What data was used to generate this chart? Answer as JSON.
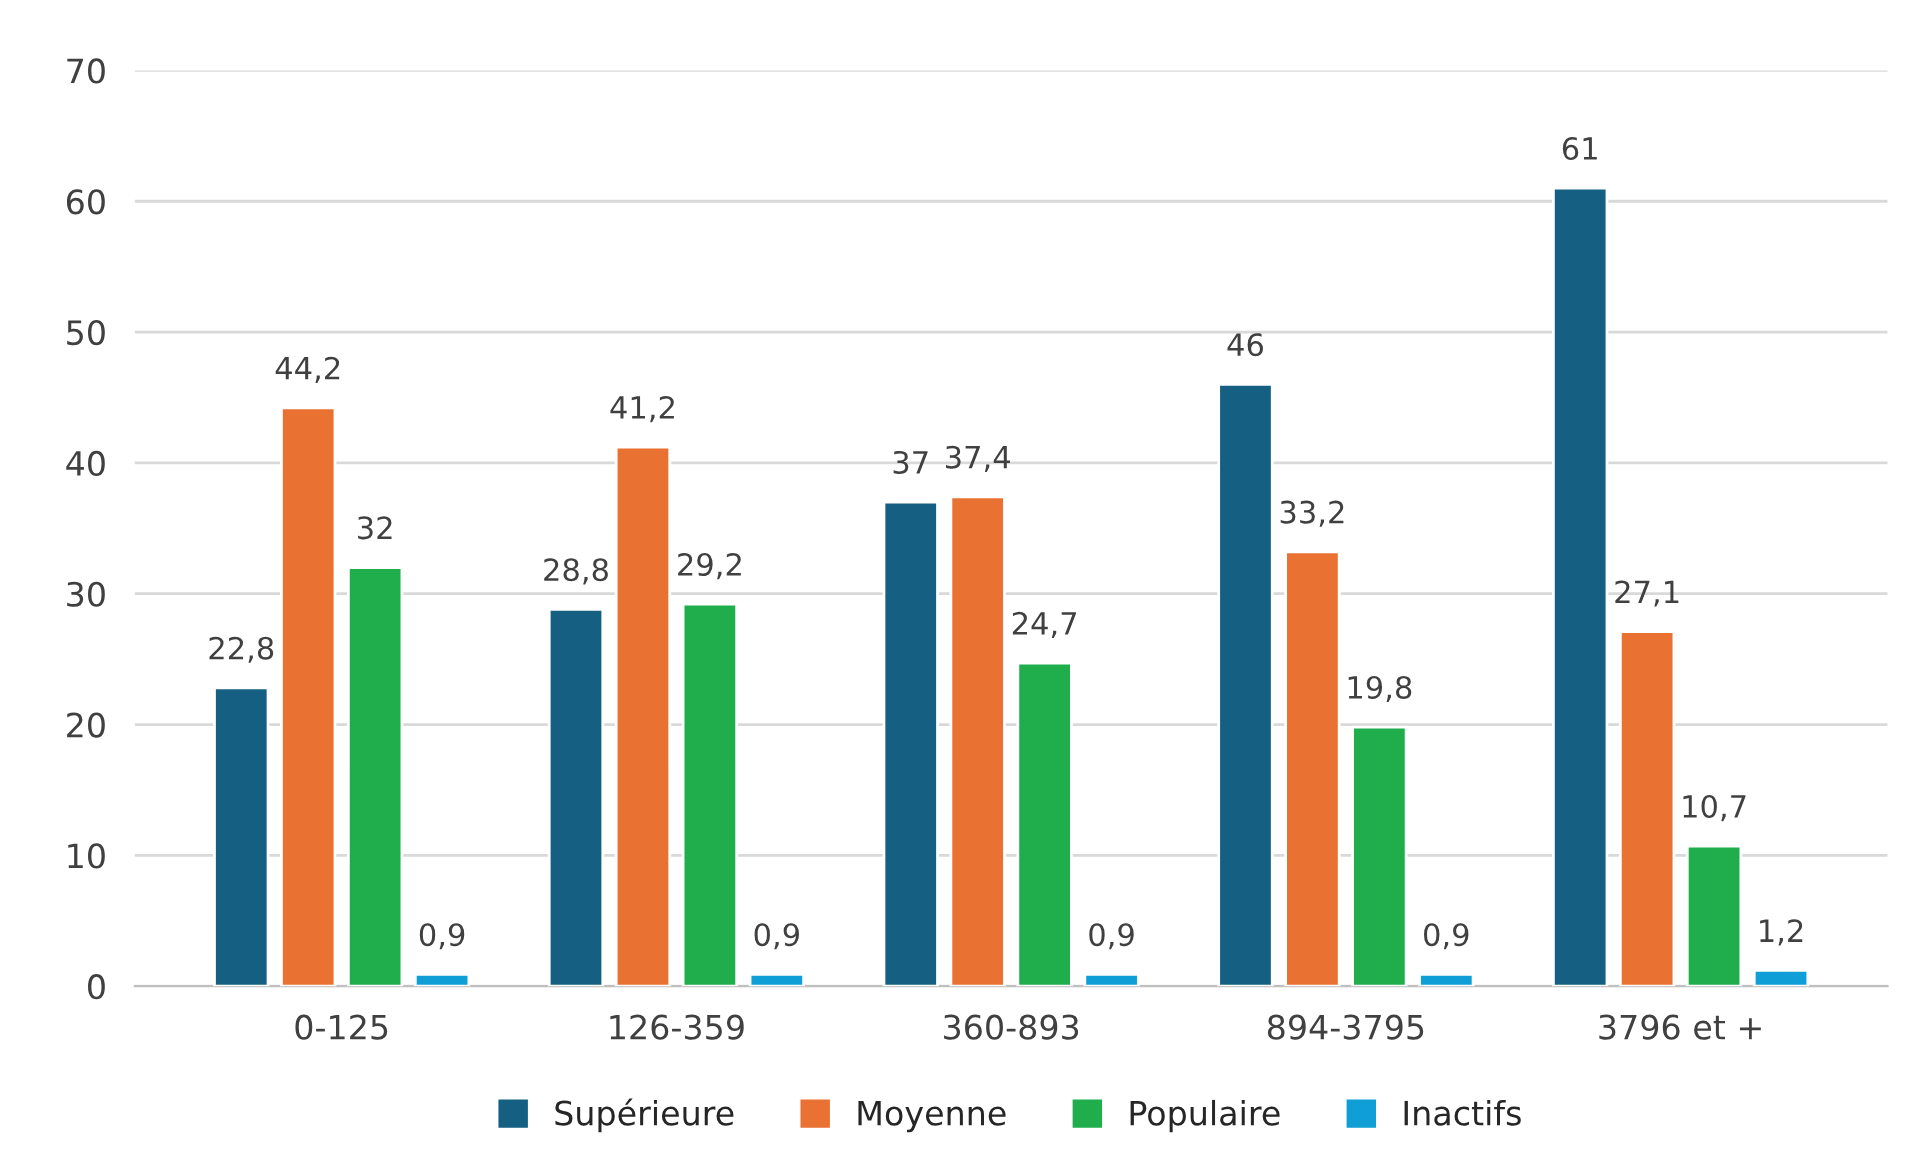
{
  "chart_data": {
    "type": "bar",
    "categories": [
      "0-125",
      "126-359",
      "360-893",
      "894-3795",
      "3796 et +"
    ],
    "series": [
      {
        "name": "Supérieure",
        "color": "#156082",
        "values": [
          22.8,
          28.8,
          37,
          46,
          61
        ],
        "value_labels": [
          "22,8",
          "28,8",
          "37",
          "46",
          "61"
        ]
      },
      {
        "name": "Moyenne",
        "color": "#e97132",
        "values": [
          44.2,
          41.2,
          37.4,
          33.2,
          27.1
        ],
        "value_labels": [
          "44,2",
          "41,2",
          "37,4",
          "33,2",
          "27,1"
        ]
      },
      {
        "name": "Populaire",
        "color": "#1fae4b",
        "values": [
          32,
          29.2,
          24.7,
          19.8,
          10.7
        ],
        "value_labels": [
          "32",
          "29,2",
          "24,7",
          "19,8",
          "10,7"
        ]
      },
      {
        "name": "Inactifs",
        "color": "#0f9ed5",
        "values": [
          0.9,
          0.9,
          0.9,
          0.9,
          1.2
        ],
        "value_labels": [
          "0,9",
          "0,9",
          "0,9",
          "0,9",
          "1,2"
        ]
      }
    ],
    "ylim": [
      0,
      70
    ],
    "yticks": [
      0,
      10,
      20,
      30,
      40,
      50,
      60,
      70
    ],
    "grid": "y",
    "legend": "bottom"
  }
}
